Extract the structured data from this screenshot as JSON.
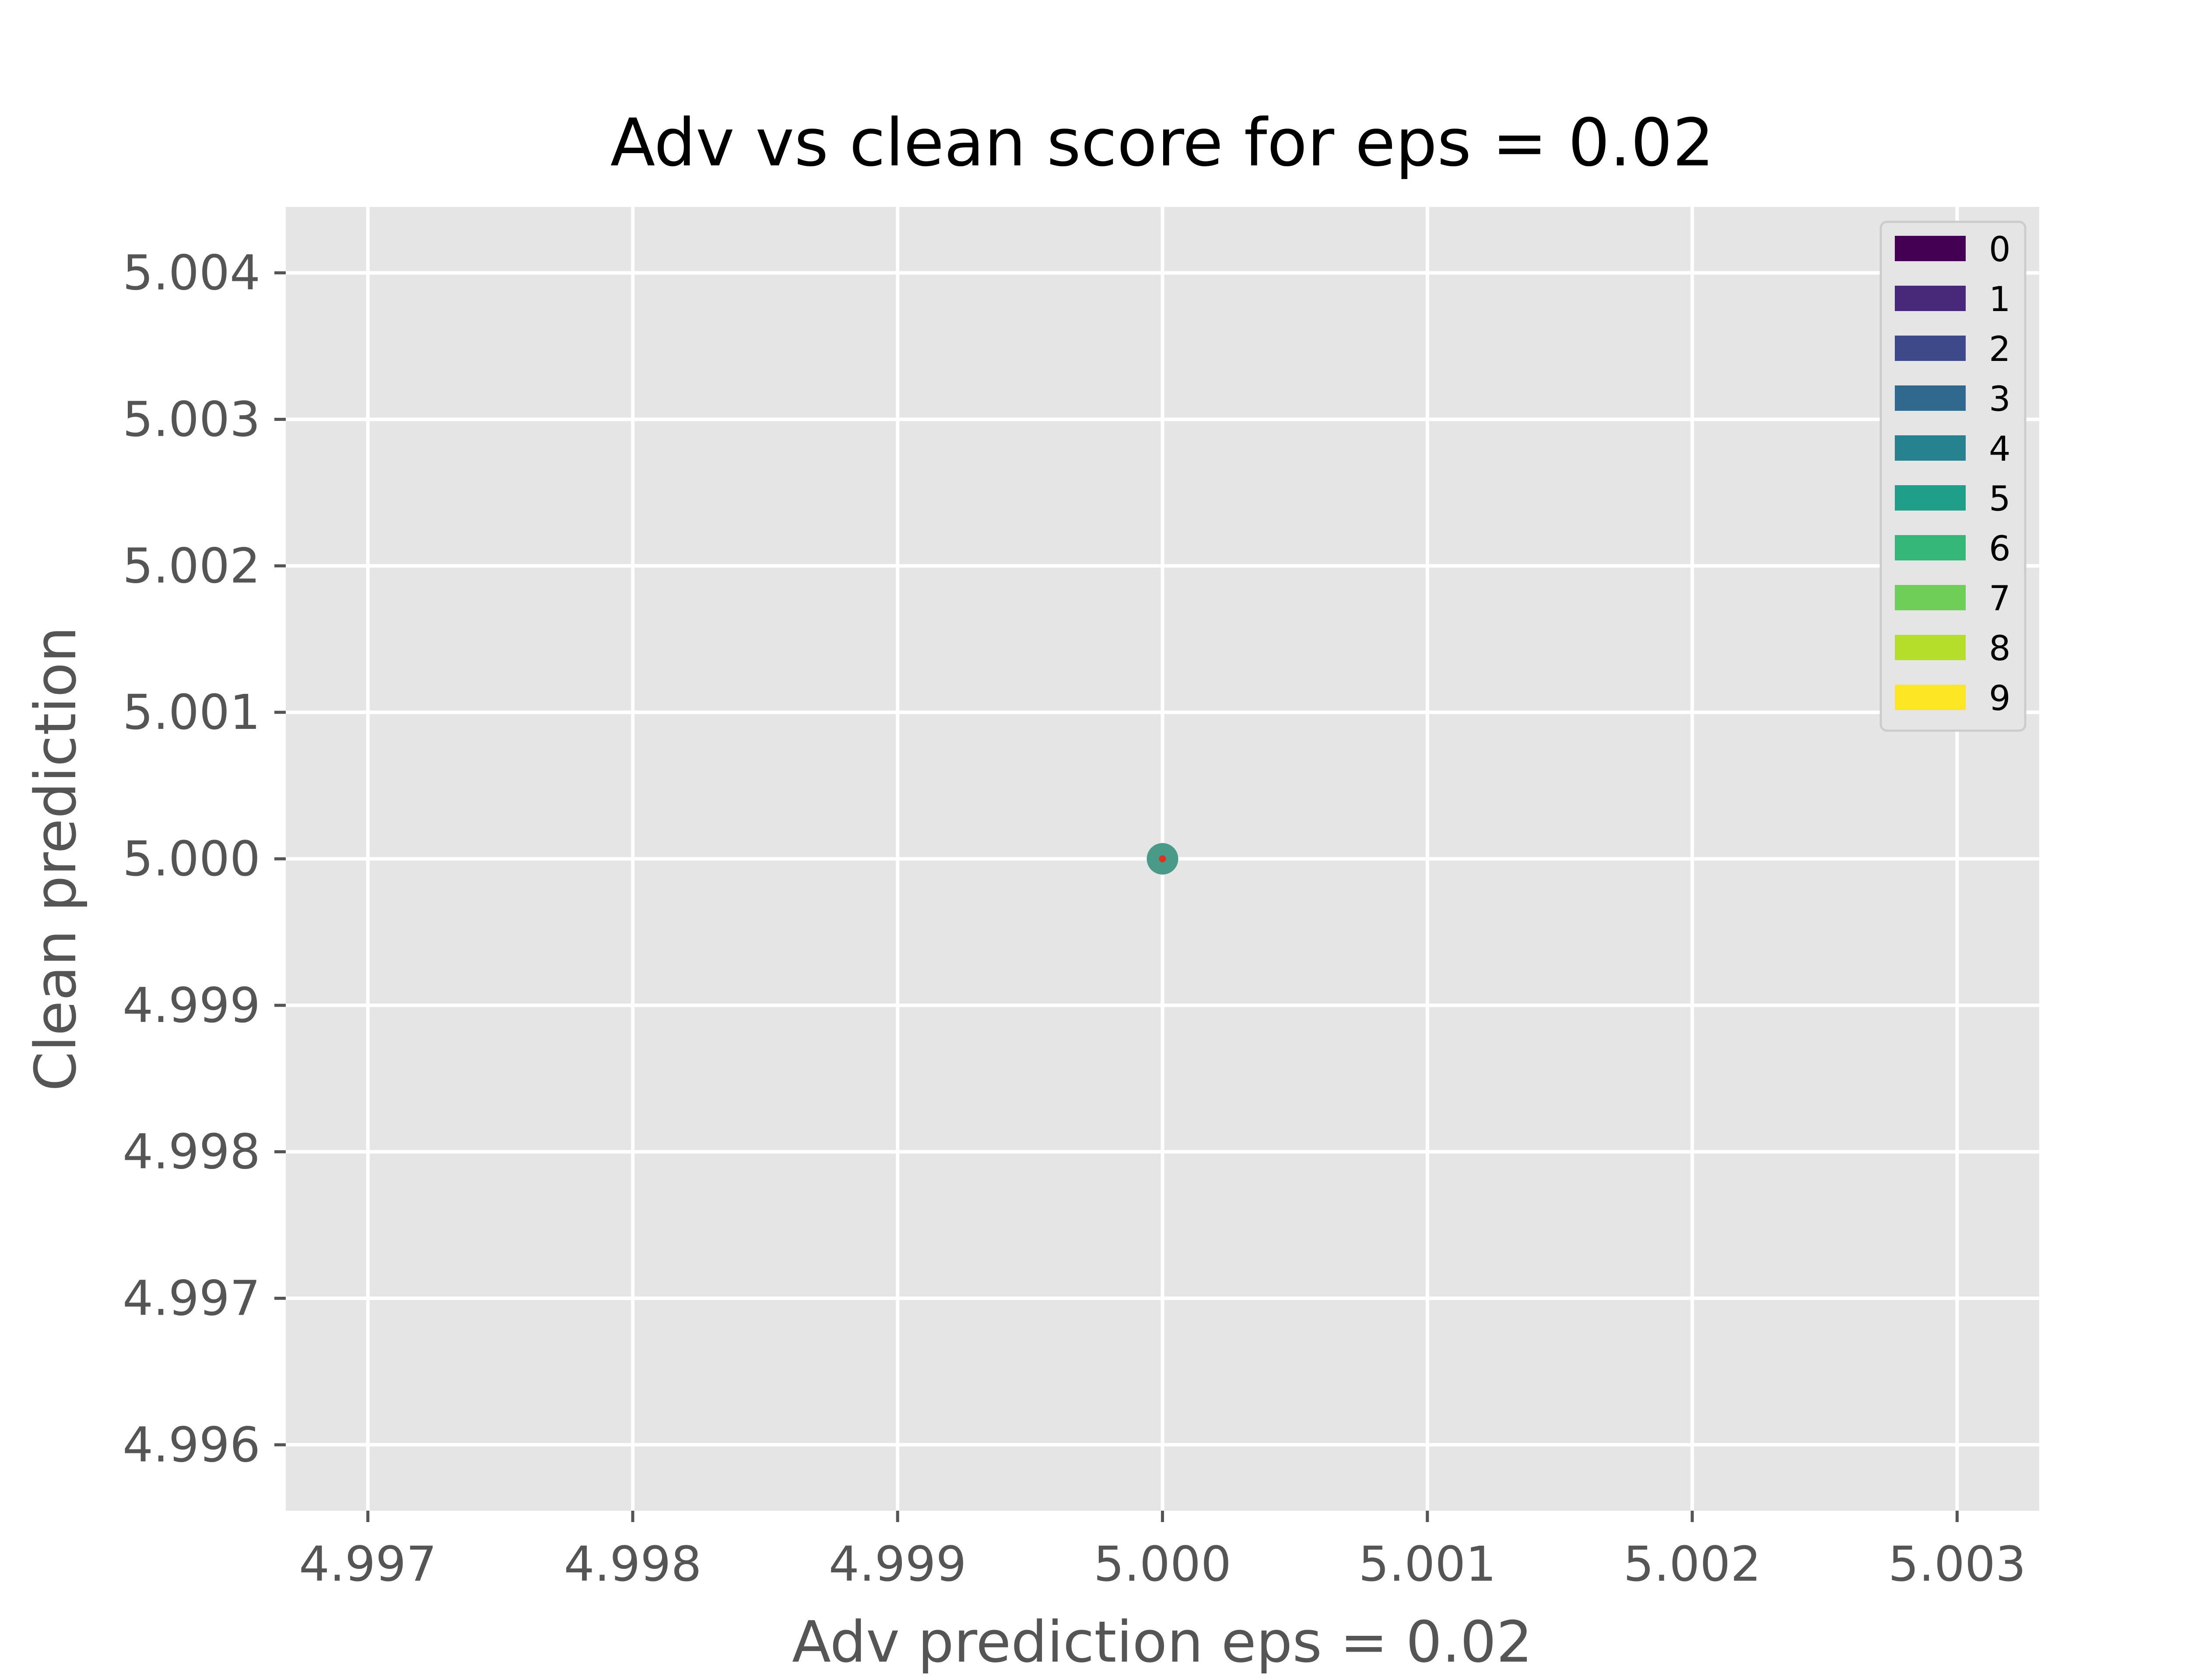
{
  "colors": {
    "panel_bg": "#e5e5e5",
    "grid": "#ffffff",
    "tick": "#555555",
    "legend_bg": "#e5e5e5",
    "legend_border": "#cccccc",
    "marker": "#4a9a8a",
    "center_dot": "#e03020"
  },
  "chart_data": {
    "type": "scatter",
    "title": "Adv vs clean score for eps = 0.02",
    "xlabel": "Adv prediction eps = 0.02",
    "ylabel": "Clean prediction",
    "xlim": [
      4.99669,
      5.00331
    ],
    "ylim": [
      4.99555,
      5.00445
    ],
    "xticks": [
      4.997,
      4.998,
      4.999,
      5.0,
      5.001,
      5.002,
      5.003
    ],
    "xtick_labels": [
      "4.997",
      "4.998",
      "4.999",
      "5.000",
      "5.001",
      "5.002",
      "5.003"
    ],
    "yticks": [
      4.996,
      4.997,
      4.998,
      4.999,
      5.0,
      5.001,
      5.002,
      5.003,
      5.004
    ],
    "ytick_labels": [
      "4.996",
      "4.997",
      "4.998",
      "4.999",
      "5.000",
      "5.001",
      "5.002",
      "5.003",
      "5.004"
    ],
    "grid": true,
    "legend_position": "top-right",
    "legend": [
      {
        "label": "0",
        "color": "#440154"
      },
      {
        "label": "1",
        "color": "#482878"
      },
      {
        "label": "2",
        "color": "#3e4989"
      },
      {
        "label": "3",
        "color": "#31688e"
      },
      {
        "label": "4",
        "color": "#26828e"
      },
      {
        "label": "5",
        "color": "#1f9e89"
      },
      {
        "label": "6",
        "color": "#35b779"
      },
      {
        "label": "7",
        "color": "#6ece58"
      },
      {
        "label": "8",
        "color": "#b5de2b"
      },
      {
        "label": "9",
        "color": "#fde725"
      }
    ],
    "points": [
      {
        "x": 5.0,
        "y": 5.0,
        "class": "5"
      }
    ]
  }
}
